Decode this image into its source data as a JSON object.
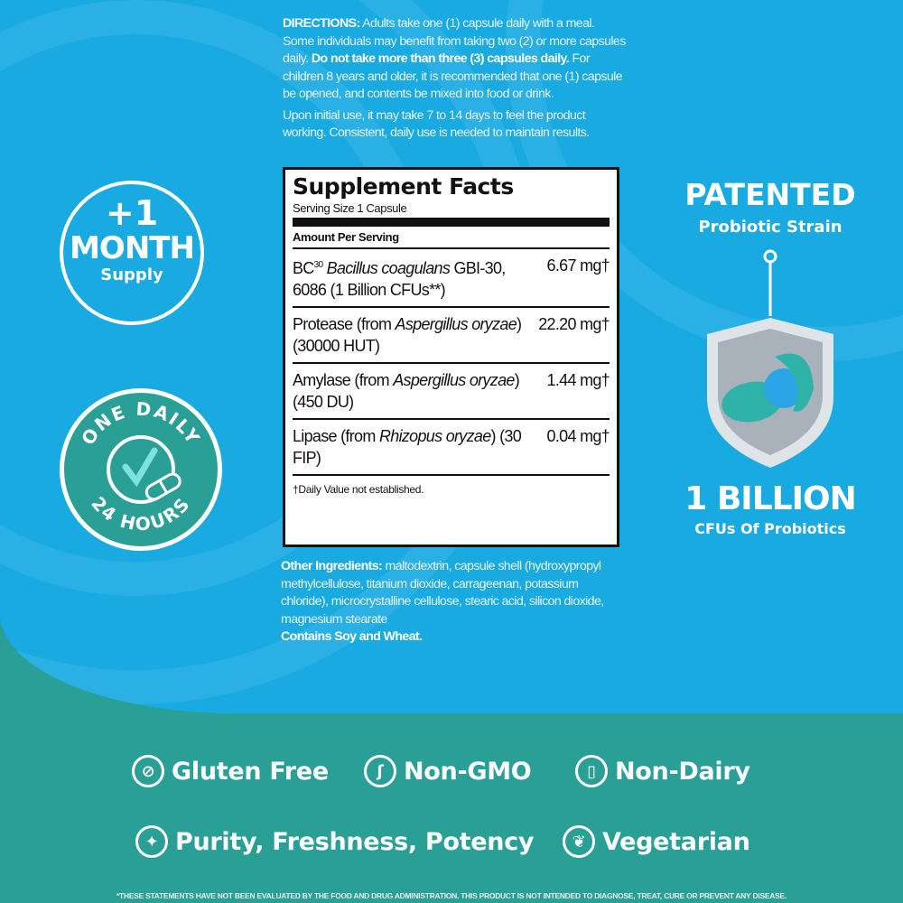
{
  "directions": {
    "label": "DIRECTIONS:",
    "text1": " Adults take one (1) capsule daily with a meal. Some individuals may benefit from taking two (2) or more capsules daily. ",
    "bold": "Do not take more than three (3) capsules daily.",
    "text2": " For children 8 years and older, it is recommended that one (1) capsule be opened, and contents be mixed into food or drink.",
    "note": "Upon initial use, it may take 7 to 14 days to feel the product working. Consistent, daily use is needed to maintain results."
  },
  "facts": {
    "title": "Supplement Facts",
    "serving": "Serving Size 1 Capsule",
    "amount_header": "Amount Per Serving",
    "rows": [
      {
        "pre": "BC",
        "sup": "30",
        "ital": " Bacillus coagulans",
        "post": " GBI-30, 6086 (1 Billion CFUs**)",
        "amount": "6.67 mg†"
      },
      {
        "pre": "Protease (from ",
        "ital": "Aspergillus oryzae",
        "post": ") (30000 HUT)",
        "amount": "22.20 mg†"
      },
      {
        "pre": "Amylase (from ",
        "ital": "Aspergillus oryzae",
        "post": ") (450 DU)",
        "amount": "1.44 mg†"
      },
      {
        "pre": "Lipase (from ",
        "ital": "Rhizopus oryzae",
        "post": ") (30 FIP)",
        "amount": "0.04 mg†"
      }
    ],
    "footnote": "†Daily Value not established."
  },
  "other": {
    "label": "Other Ingredients:",
    "text": " maltodextrin, capsule shell (hydroxypropyl methylcellulose, titanium dioxide, carrageenan, potassium chloride), microcrystalline cellulose, stearic acid, silicon dioxide, magnesium stearate",
    "allergen": "Contains Soy and Wheat."
  },
  "month_badge": {
    "line1": "+1",
    "line2": "MONTH",
    "line3": "Supply"
  },
  "daily_badge": {
    "top": "ONE DAILY",
    "bottom": "24 HOURS"
  },
  "patent": {
    "title": "PATENTED",
    "sub": "Probiotic Strain",
    "count": "1 BILLION",
    "count_sub": "CFUs Of Probiotics"
  },
  "claims": [
    {
      "icon": "no-wheat-icon",
      "label": "Gluten Free"
    },
    {
      "icon": "dna-icon",
      "label": "Non-GMO"
    },
    {
      "icon": "milk-bottle-icon",
      "label": "Non-Dairy"
    },
    {
      "icon": "sparkle-icon",
      "label": "Purity, Freshness, Potency"
    },
    {
      "icon": "leaf-icon",
      "label": "Vegetarian"
    }
  ],
  "disclaimer": "*THESE STATEMENTS HAVE NOT BEEN EVALUATED BY THE FOOD AND DRUG ADMINISTRATION. THIS PRODUCT IS NOT INTENDED TO DIAGNOSE, TREAT, CURE OR PREVENT ANY DISEASE.",
  "colors": {
    "blue": "#1aaae2",
    "teal": "#2a9f96",
    "capsule": "#2fb3a8"
  }
}
